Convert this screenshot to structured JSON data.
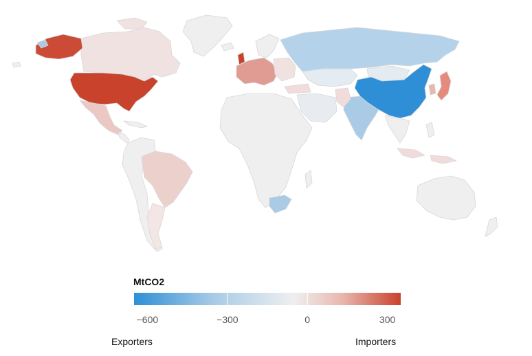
{
  "colors": {
    "exporter_strong": "#2f8fd6",
    "exporter_mid": "#a9cbe6",
    "exporter_light": "#c9dcec",
    "neutral": "#efefef",
    "importer_light": "#f1dcdb",
    "importer_mid": "#e0a59c",
    "importer_strong": "#c9422c",
    "border": "#d7d7d7"
  },
  "countries": [
    {
      "name": "United States",
      "color": "#c9422c"
    },
    {
      "name": "Alaska",
      "color": "#cc4b36"
    },
    {
      "name": "Canada",
      "color": "#f1e2e2"
    },
    {
      "name": "Greenland",
      "color": "#efefef"
    },
    {
      "name": "Mexico",
      "color": "#ecc8c4"
    },
    {
      "name": "Brazil",
      "color": "#ecd0cb"
    },
    {
      "name": "Russia",
      "color": "#b4d2ea"
    },
    {
      "name": "China",
      "color": "#2f8fd6"
    },
    {
      "name": "India",
      "color": "#a9cbe6"
    },
    {
      "name": "Japan",
      "color": "#e48b7e"
    },
    {
      "name": "South Africa",
      "color": "#a9cbe6"
    },
    {
      "name": "Australia",
      "color": "#efefef"
    },
    {
      "name": "Western Europe",
      "color": "#e09b92"
    }
  ],
  "legend": {
    "title": "MtCO2",
    "ticks": [
      "−600",
      "−300",
      "0",
      "300"
    ],
    "tick_values": [
      -600,
      -300,
      0,
      300
    ],
    "range": [
      -650,
      350
    ],
    "gradient": [
      "#2f8fd6",
      "#a9cbe6",
      "#efefef",
      "#e8b7ae",
      "#c9422c"
    ],
    "left_label": "Exporters",
    "right_label": "Importers"
  }
}
